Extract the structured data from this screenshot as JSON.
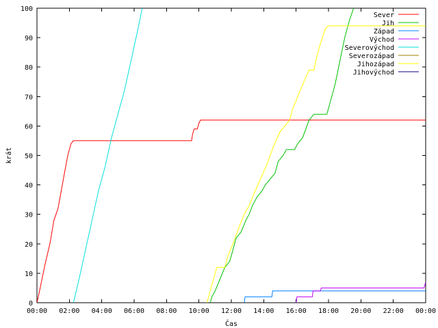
{
  "chart_data": {
    "type": "line",
    "xlabel": "Čas",
    "ylabel": "krát",
    "xlim": [
      0,
      24
    ],
    "ylim": [
      0,
      100
    ],
    "x_ticks": [
      "00:00",
      "02:00",
      "04:00",
      "06:00",
      "08:00",
      "10:00",
      "12:00",
      "14:00",
      "16:00",
      "18:00",
      "20:00",
      "22:00",
      "00:00"
    ],
    "y_ticks": [
      0,
      10,
      20,
      30,
      40,
      50,
      60,
      70,
      80,
      90,
      100
    ],
    "grid": false,
    "legend_position": "top-right",
    "series": [
      {
        "name": "Sever",
        "color": "#ff0000",
        "points": [
          [
            0,
            0
          ],
          [
            0.2,
            5
          ],
          [
            0.5,
            13
          ],
          [
            0.8,
            20
          ],
          [
            1.05,
            28
          ],
          [
            1.3,
            32
          ],
          [
            1.5,
            38
          ],
          [
            1.7,
            44
          ],
          [
            1.9,
            50
          ],
          [
            2.1,
            54
          ],
          [
            2.25,
            55
          ],
          [
            9.55,
            55
          ],
          [
            9.6,
            57
          ],
          [
            9.7,
            59
          ],
          [
            9.9,
            59
          ],
          [
            10.0,
            61
          ],
          [
            10.1,
            62
          ],
          [
            24,
            62
          ]
        ]
      },
      {
        "name": "Jih",
        "color": "#00c000",
        "points": [
          [
            10.7,
            0
          ],
          [
            10.8,
            2
          ],
          [
            11.0,
            4
          ],
          [
            11.3,
            8
          ],
          [
            11.6,
            12
          ],
          [
            11.9,
            14
          ],
          [
            12.1,
            18
          ],
          [
            12.3,
            22
          ],
          [
            12.6,
            24
          ],
          [
            12.9,
            28
          ],
          [
            13.1,
            30
          ],
          [
            13.3,
            33
          ],
          [
            13.6,
            36
          ],
          [
            13.9,
            38
          ],
          [
            14.1,
            40
          ],
          [
            14.4,
            42
          ],
          [
            14.7,
            44
          ],
          [
            14.9,
            48
          ],
          [
            15.2,
            50
          ],
          [
            15.4,
            52
          ],
          [
            15.9,
            52
          ],
          [
            16.1,
            54
          ],
          [
            16.4,
            56
          ],
          [
            16.6,
            59
          ],
          [
            16.8,
            62
          ],
          [
            17.1,
            64
          ],
          [
            17.9,
            64
          ],
          [
            18.1,
            68
          ],
          [
            18.4,
            74
          ],
          [
            18.7,
            82
          ],
          [
            19.0,
            90
          ],
          [
            19.3,
            96
          ],
          [
            19.55,
            100
          ]
        ]
      },
      {
        "name": "Západ",
        "color": "#0080ff",
        "points": [
          [
            12.8,
            0
          ],
          [
            12.85,
            2
          ],
          [
            14.5,
            2
          ],
          [
            14.55,
            4
          ],
          [
            24,
            4
          ]
        ]
      },
      {
        "name": "Východ",
        "color": "#c000ff",
        "points": [
          [
            16.0,
            0
          ],
          [
            16.05,
            2
          ],
          [
            17.0,
            2
          ],
          [
            17.05,
            4
          ],
          [
            17.5,
            4
          ],
          [
            17.55,
            5
          ],
          [
            23.9,
            5
          ],
          [
            24,
            7
          ]
        ]
      },
      {
        "name": "Severovýchod",
        "color": "#00e0e0",
        "points": [
          [
            2.25,
            0
          ],
          [
            2.6,
            8
          ],
          [
            3.0,
            18
          ],
          [
            3.4,
            28
          ],
          [
            3.8,
            38
          ],
          [
            4.2,
            46
          ],
          [
            4.6,
            56
          ],
          [
            5.0,
            64
          ],
          [
            5.4,
            72
          ],
          [
            5.8,
            82
          ],
          [
            6.2,
            92
          ],
          [
            6.5,
            100
          ]
        ]
      },
      {
        "name": "Severozápad",
        "color": "#a08000",
        "points": []
      },
      {
        "name": "Jihozápad",
        "color": "#ffff00",
        "points": [
          [
            10.5,
            0
          ],
          [
            10.7,
            4
          ],
          [
            10.9,
            8
          ],
          [
            11.1,
            12
          ],
          [
            11.6,
            12
          ],
          [
            11.8,
            16
          ],
          [
            12.1,
            20
          ],
          [
            12.5,
            26
          ],
          [
            12.8,
            30
          ],
          [
            13.1,
            33
          ],
          [
            13.4,
            37
          ],
          [
            13.8,
            42
          ],
          [
            14.2,
            47
          ],
          [
            14.6,
            53
          ],
          [
            15.0,
            58
          ],
          [
            15.3,
            60
          ],
          [
            15.6,
            62
          ],
          [
            15.8,
            66
          ],
          [
            16.1,
            70
          ],
          [
            16.4,
            74
          ],
          [
            16.8,
            79
          ],
          [
            17.1,
            79
          ],
          [
            17.3,
            84
          ],
          [
            17.5,
            88
          ],
          [
            17.8,
            93
          ],
          [
            18.0,
            94
          ],
          [
            24,
            94
          ]
        ]
      },
      {
        "name": "Jihovýchod",
        "color": "#000080",
        "points": []
      }
    ]
  }
}
